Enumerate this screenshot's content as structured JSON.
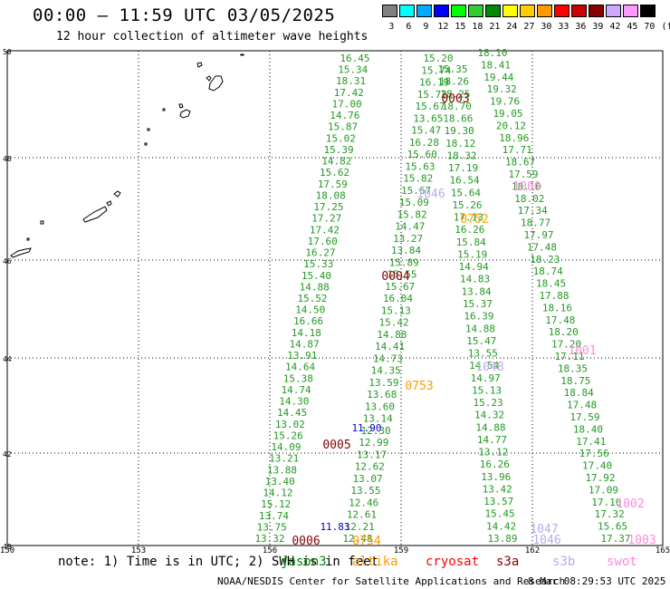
{
  "header": {
    "title": "00:00 – 11:59 UTC 03/05/2025",
    "subtitle": "12 hour collection of altimeter wave heights"
  },
  "legend": {
    "labels": [
      "3",
      "6",
      "9",
      "12",
      "15",
      "18",
      "21",
      "24",
      "27",
      "30",
      "33",
      "36",
      "39",
      "42",
      "45",
      "70",
      "(ft)"
    ],
    "colors": [
      "#808080",
      "#00ffff",
      "#00aaff",
      "#0000ff",
      "#00ff00",
      "#33cc33",
      "#008800",
      "#ffff00",
      "#ffcc00",
      "#ff9900",
      "#ff0000",
      "#cc0000",
      "#880000",
      "#ccaaff",
      "#ff99ff",
      "#000000"
    ]
  },
  "map": {
    "lat_ticks": [
      "50",
      "48",
      "46",
      "44",
      "42",
      "40"
    ],
    "lon_ticks": [
      "150",
      "153",
      "156",
      "159",
      "162",
      "165"
    ]
  },
  "tracks": [
    {
      "name": "green-a",
      "color": "#229922",
      "items": [
        "16.45",
        "15.34",
        "18.31",
        "17.42",
        "17.00",
        "14.76",
        "15.87",
        "15.02",
        "15.39",
        "14.82",
        "15.62",
        "17.59",
        "18.08",
        "17.25",
        "17.27",
        "17.42",
        "17.60",
        "16.27",
        "15.33",
        "15.40",
        "14.88",
        "15.52",
        "14.50",
        "16.66",
        "14.18",
        "14.87",
        "13.91",
        "14.64",
        "15.38",
        "14.74",
        "14.30",
        "14.45",
        "13.02",
        "15.26",
        "14.09",
        "13.21",
        "13.88",
        "13.40",
        "14.12",
        "15.12",
        "13.74",
        "13.75",
        "13.32"
      ]
    },
    {
      "name": "green-b",
      "color": "#229922",
      "items": [
        "15.20",
        "15.74",
        "16.19",
        "15.72",
        "15.67",
        "13.65",
        "15.47",
        "16.28",
        "15.60",
        "15.63",
        "15.82",
        "15.67",
        "15.09",
        "15.82",
        "14.47",
        "13.27",
        "13.84",
        "15.89",
        "15.55",
        "15.67",
        "16.04",
        "15.13",
        "15.42",
        "14.88",
        "14.41",
        "14.73",
        "14.35",
        "13.59",
        "13.68",
        "13.60",
        "13.14",
        "12.30",
        "12.99",
        "13.17",
        "12.62",
        "13.07",
        "13.55",
        "12.46",
        "12.61",
        "12.21",
        "12.48"
      ]
    },
    {
      "name": "green-c",
      "color": "#229922",
      "items": [
        "15.35",
        "18.26",
        "18.25",
        "18.70",
        "18.66",
        "19.30",
        "18.12",
        "18.32",
        "17.19",
        "16.54",
        "15.64",
        "15.26",
        "17.13",
        "16.26",
        "15.84",
        "15.19",
        "14.94",
        "14.83",
        "13.84",
        "15.37",
        "16.39",
        "14.88",
        "15.47",
        "13.55",
        "14.54",
        "14.97",
        "15.13",
        "15.23",
        "14.32",
        "14.88",
        "14.77",
        "13.12",
        "16.26",
        "13.96",
        "13.42",
        "13.57",
        "15.45",
        "14.42",
        "13.89"
      ]
    },
    {
      "name": "green-d",
      "color": "#229922",
      "items": [
        "18.10",
        "18.41",
        "19.44",
        "19.32",
        "19.76",
        "19.05",
        "20.12",
        "18.96",
        "17.71",
        "18.67",
        "17.59",
        "18.10",
        "18.02",
        "17.34",
        "18.77",
        "17.97",
        "17.48",
        "18.23",
        "18.74",
        "18.45",
        "17.88",
        "18.16",
        "17.48",
        "18.20",
        "17.20",
        "17.11",
        "18.35",
        "18.75",
        "18.84",
        "17.48",
        "17.59",
        "18.40",
        "17.41",
        "17.56",
        "17.40",
        "17.92",
        "17.09",
        "17.10",
        "17.32",
        "15.65",
        "17.37"
      ]
    },
    {
      "name": "blue-e",
      "color": "#0000cc",
      "items": [
        "11.90",
        "11.83"
      ]
    }
  ],
  "time_stamps": [
    {
      "label": "0003",
      "color": "#880000"
    },
    {
      "label": "0004",
      "color": "#880000"
    },
    {
      "label": "0005",
      "color": "#880000"
    },
    {
      "label": "0006",
      "color": "#880000"
    },
    {
      "label": "0752",
      "color": "#ff9900"
    },
    {
      "label": "0753",
      "color": "#ff9900"
    },
    {
      "label": "0754",
      "color": "#ff9900"
    },
    {
      "label": "1046",
      "color": "#bbaaee"
    },
    {
      "label": "1048",
      "color": "#bbaaee"
    },
    {
      "label": "1047",
      "color": "#bbaaee"
    },
    {
      "label": "1046",
      "color": "#bbaaee"
    },
    {
      "label": "1000",
      "color": "#ff88dd"
    },
    {
      "label": "1001",
      "color": "#ff88dd"
    },
    {
      "label": "1002",
      "color": "#ff88dd"
    },
    {
      "label": "1003",
      "color": "#ff88dd"
    }
  ],
  "footer": {
    "note": "note: 1) Time is in UTC; 2) SWH is in feet",
    "satellites": [
      {
        "name": "jason3",
        "color": "#008800"
      },
      {
        "name": "altika",
        "color": "#ff9900"
      },
      {
        "name": "cryosat",
        "color": "#ff0000"
      },
      {
        "name": "s3a",
        "color": "#880000"
      },
      {
        "name": "s3b",
        "color": "#bbaaee"
      },
      {
        "name": "swot",
        "color": "#ff88dd"
      }
    ],
    "credit": "NOAA/NESDIS Center for Satellite Applications and Research",
    "stamp": "8 Mar 08:29:53 UTC 2025"
  }
}
